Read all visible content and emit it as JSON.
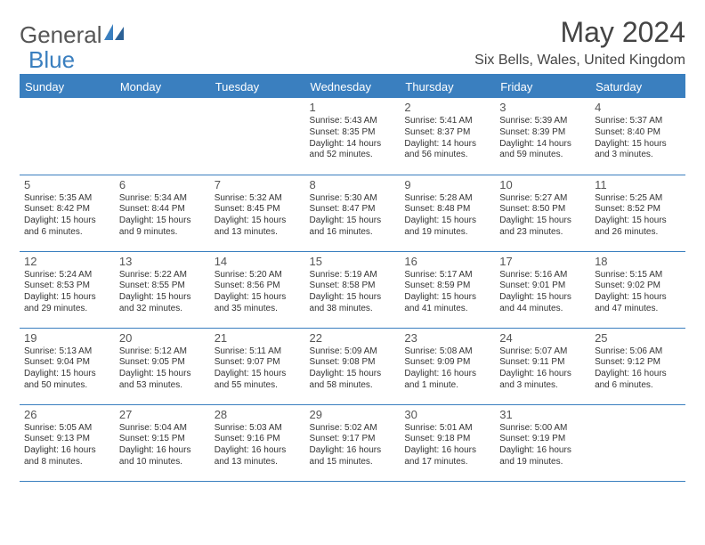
{
  "logo": {
    "part1": "General",
    "part2": "Blue"
  },
  "title": "May 2024",
  "location": "Six Bells, Wales, United Kingdom",
  "colors": {
    "accent": "#3a7fbf",
    "text": "#444444",
    "cell_border": "#3a7fbf",
    "bg": "#ffffff"
  },
  "day_headers": [
    "Sunday",
    "Monday",
    "Tuesday",
    "Wednesday",
    "Thursday",
    "Friday",
    "Saturday"
  ],
  "weeks": [
    [
      null,
      null,
      null,
      {
        "n": "1",
        "sr": "5:43 AM",
        "ss": "8:35 PM",
        "dl": "14 hours and 52 minutes."
      },
      {
        "n": "2",
        "sr": "5:41 AM",
        "ss": "8:37 PM",
        "dl": "14 hours and 56 minutes."
      },
      {
        "n": "3",
        "sr": "5:39 AM",
        "ss": "8:39 PM",
        "dl": "14 hours and 59 minutes."
      },
      {
        "n": "4",
        "sr": "5:37 AM",
        "ss": "8:40 PM",
        "dl": "15 hours and 3 minutes."
      }
    ],
    [
      {
        "n": "5",
        "sr": "5:35 AM",
        "ss": "8:42 PM",
        "dl": "15 hours and 6 minutes."
      },
      {
        "n": "6",
        "sr": "5:34 AM",
        "ss": "8:44 PM",
        "dl": "15 hours and 9 minutes."
      },
      {
        "n": "7",
        "sr": "5:32 AM",
        "ss": "8:45 PM",
        "dl": "15 hours and 13 minutes."
      },
      {
        "n": "8",
        "sr": "5:30 AM",
        "ss": "8:47 PM",
        "dl": "15 hours and 16 minutes."
      },
      {
        "n": "9",
        "sr": "5:28 AM",
        "ss": "8:48 PM",
        "dl": "15 hours and 19 minutes."
      },
      {
        "n": "10",
        "sr": "5:27 AM",
        "ss": "8:50 PM",
        "dl": "15 hours and 23 minutes."
      },
      {
        "n": "11",
        "sr": "5:25 AM",
        "ss": "8:52 PM",
        "dl": "15 hours and 26 minutes."
      }
    ],
    [
      {
        "n": "12",
        "sr": "5:24 AM",
        "ss": "8:53 PM",
        "dl": "15 hours and 29 minutes."
      },
      {
        "n": "13",
        "sr": "5:22 AM",
        "ss": "8:55 PM",
        "dl": "15 hours and 32 minutes."
      },
      {
        "n": "14",
        "sr": "5:20 AM",
        "ss": "8:56 PM",
        "dl": "15 hours and 35 minutes."
      },
      {
        "n": "15",
        "sr": "5:19 AM",
        "ss": "8:58 PM",
        "dl": "15 hours and 38 minutes."
      },
      {
        "n": "16",
        "sr": "5:17 AM",
        "ss": "8:59 PM",
        "dl": "15 hours and 41 minutes."
      },
      {
        "n": "17",
        "sr": "5:16 AM",
        "ss": "9:01 PM",
        "dl": "15 hours and 44 minutes."
      },
      {
        "n": "18",
        "sr": "5:15 AM",
        "ss": "9:02 PM",
        "dl": "15 hours and 47 minutes."
      }
    ],
    [
      {
        "n": "19",
        "sr": "5:13 AM",
        "ss": "9:04 PM",
        "dl": "15 hours and 50 minutes."
      },
      {
        "n": "20",
        "sr": "5:12 AM",
        "ss": "9:05 PM",
        "dl": "15 hours and 53 minutes."
      },
      {
        "n": "21",
        "sr": "5:11 AM",
        "ss": "9:07 PM",
        "dl": "15 hours and 55 minutes."
      },
      {
        "n": "22",
        "sr": "5:09 AM",
        "ss": "9:08 PM",
        "dl": "15 hours and 58 minutes."
      },
      {
        "n": "23",
        "sr": "5:08 AM",
        "ss": "9:09 PM",
        "dl": "16 hours and 1 minute."
      },
      {
        "n": "24",
        "sr": "5:07 AM",
        "ss": "9:11 PM",
        "dl": "16 hours and 3 minutes."
      },
      {
        "n": "25",
        "sr": "5:06 AM",
        "ss": "9:12 PM",
        "dl": "16 hours and 6 minutes."
      }
    ],
    [
      {
        "n": "26",
        "sr": "5:05 AM",
        "ss": "9:13 PM",
        "dl": "16 hours and 8 minutes."
      },
      {
        "n": "27",
        "sr": "5:04 AM",
        "ss": "9:15 PM",
        "dl": "16 hours and 10 minutes."
      },
      {
        "n": "28",
        "sr": "5:03 AM",
        "ss": "9:16 PM",
        "dl": "16 hours and 13 minutes."
      },
      {
        "n": "29",
        "sr": "5:02 AM",
        "ss": "9:17 PM",
        "dl": "16 hours and 15 minutes."
      },
      {
        "n": "30",
        "sr": "5:01 AM",
        "ss": "9:18 PM",
        "dl": "16 hours and 17 minutes."
      },
      {
        "n": "31",
        "sr": "5:00 AM",
        "ss": "9:19 PM",
        "dl": "16 hours and 19 minutes."
      },
      null
    ]
  ],
  "labels": {
    "sunrise": "Sunrise:",
    "sunset": "Sunset:",
    "daylight": "Daylight:"
  }
}
